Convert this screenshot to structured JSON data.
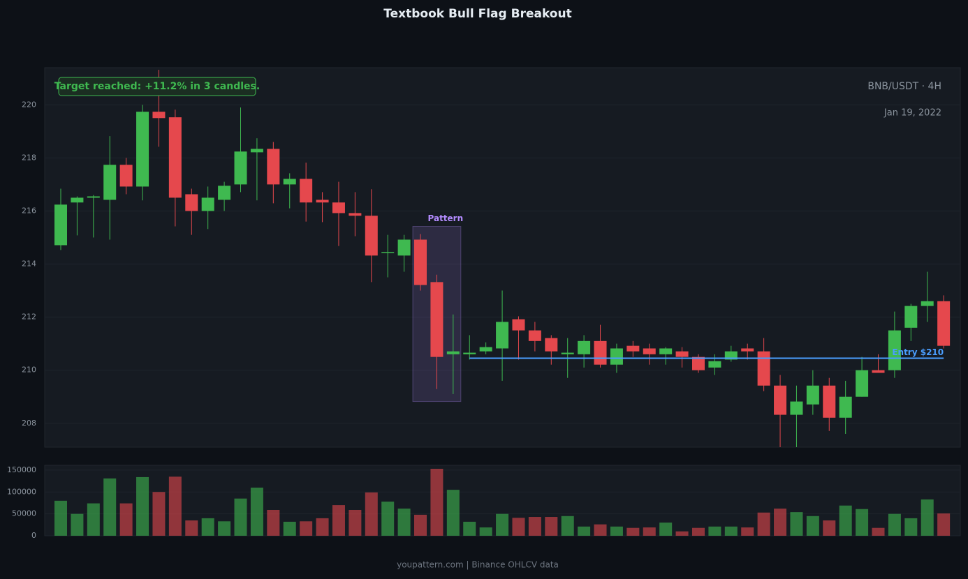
{
  "chart_data": {
    "type": "candlestick",
    "title": "Textbook Bull Flag Breakout",
    "symbol": "BNB/USDT · 4H",
    "date": "Jan 19, 2022",
    "annotation": "Target reached: +11.2% in 3 candles.",
    "footer": "youpattern.com | Binance OHLCV data",
    "up_color": "#3fb950",
    "down_color": "#e5484d",
    "open": [
      214.71,
      216.32,
      216.5,
      216.42,
      217.74,
      216.92,
      219.74,
      219.53,
      216.63,
      216.0,
      216.42,
      217.0,
      218.21,
      218.34,
      217.0,
      217.21,
      216.42,
      216.32,
      215.92,
      215.82,
      214.42,
      214.32,
      214.92,
      213.32,
      210.6,
      210.6,
      210.71,
      210.82,
      211.92,
      211.5,
      211.21,
      210.6,
      210.6,
      211.1,
      210.21,
      210.92,
      210.82,
      210.6,
      210.71,
      210.5,
      210.1,
      210.4,
      210.82,
      210.71,
      209.42,
      208.32,
      208.71,
      209.42,
      208.21,
      209.0,
      210.0,
      210.0,
      211.6,
      212.42,
      212.6
    ],
    "high": [
      216.84,
      216.55,
      216.6,
      218.82,
      218.0,
      220.0,
      221.32,
      219.82,
      216.84,
      216.92,
      217.1,
      219.9,
      218.74,
      218.6,
      217.42,
      217.82,
      216.71,
      217.1,
      216.71,
      216.82,
      215.1,
      215.1,
      215.13,
      213.6,
      212.1,
      211.32,
      211.05,
      213.0,
      212.03,
      211.82,
      211.32,
      211.21,
      211.32,
      211.71,
      211.0,
      211.1,
      211.0,
      210.87,
      210.87,
      210.6,
      210.6,
      210.92,
      211.0,
      211.21,
      209.82,
      209.42,
      210.0,
      209.71,
      209.6,
      210.5,
      210.6,
      212.21,
      212.5,
      213.71,
      212.82
    ],
    "low": [
      214.53,
      215.08,
      215.0,
      214.92,
      216.63,
      216.4,
      218.42,
      215.42,
      215.1,
      215.32,
      216.0,
      216.71,
      216.4,
      216.29,
      216.1,
      215.6,
      215.58,
      214.68,
      215.05,
      213.32,
      213.5,
      213.71,
      213.0,
      209.29,
      209.1,
      210.4,
      210.6,
      209.6,
      210.4,
      210.71,
      210.21,
      209.71,
      210.1,
      210.1,
      209.9,
      210.5,
      210.21,
      210.21,
      210.1,
      209.9,
      209.82,
      210.32,
      210.4,
      209.21,
      207.1,
      207.1,
      208.32,
      207.71,
      207.6,
      209.0,
      209.9,
      209.71,
      211.1,
      211.82,
      210.82
    ],
    "close": [
      216.24,
      216.5,
      216.55,
      217.74,
      216.92,
      219.74,
      219.5,
      216.5,
      216.0,
      216.5,
      216.95,
      218.24,
      218.34,
      217.0,
      217.21,
      216.32,
      216.32,
      215.92,
      215.82,
      214.32,
      214.45,
      214.92,
      213.21,
      210.5,
      210.71,
      210.66,
      210.87,
      211.82,
      211.5,
      211.1,
      210.71,
      210.66,
      211.1,
      210.21,
      210.82,
      210.71,
      210.6,
      210.82,
      210.5,
      210.0,
      210.34,
      210.71,
      210.71,
      209.42,
      208.32,
      208.82,
      209.42,
      208.21,
      209.0,
      210.0,
      209.9,
      211.5,
      212.42,
      212.6,
      210.92
    ],
    "volume": [
      80000,
      50000,
      74000,
      131000,
      74000,
      134000,
      100000,
      135000,
      35000,
      40000,
      33000,
      85000,
      110000,
      59000,
      32000,
      33000,
      40000,
      70000,
      59000,
      99000,
      78000,
      62000,
      48000,
      153000,
      105000,
      32000,
      19000,
      50000,
      41000,
      43000,
      43000,
      45000,
      21000,
      26000,
      21000,
      18000,
      19000,
      30000,
      10000,
      18000,
      21000,
      21000,
      19000,
      53000,
      62000,
      54000,
      45000,
      35000,
      69000,
      61000,
      18000,
      50000,
      40000,
      83000,
      51000
    ],
    "ylim": [
      207.1,
      221.4
    ],
    "yticks": [
      208,
      210,
      212,
      214,
      216,
      218,
      220
    ],
    "volume_ylim": [
      0,
      161000
    ],
    "volume_yticks": [
      0,
      50000,
      100000,
      150000
    ],
    "pattern": {
      "label": "Pattern",
      "start": 22,
      "end": 24,
      "high": 215.42,
      "low": 208.82,
      "color": "#b48cff"
    },
    "entry": {
      "label": "Entry $210",
      "value": 210.45,
      "start": 25,
      "end": 54,
      "color": "#4a9eff"
    },
    "grid": true
  }
}
